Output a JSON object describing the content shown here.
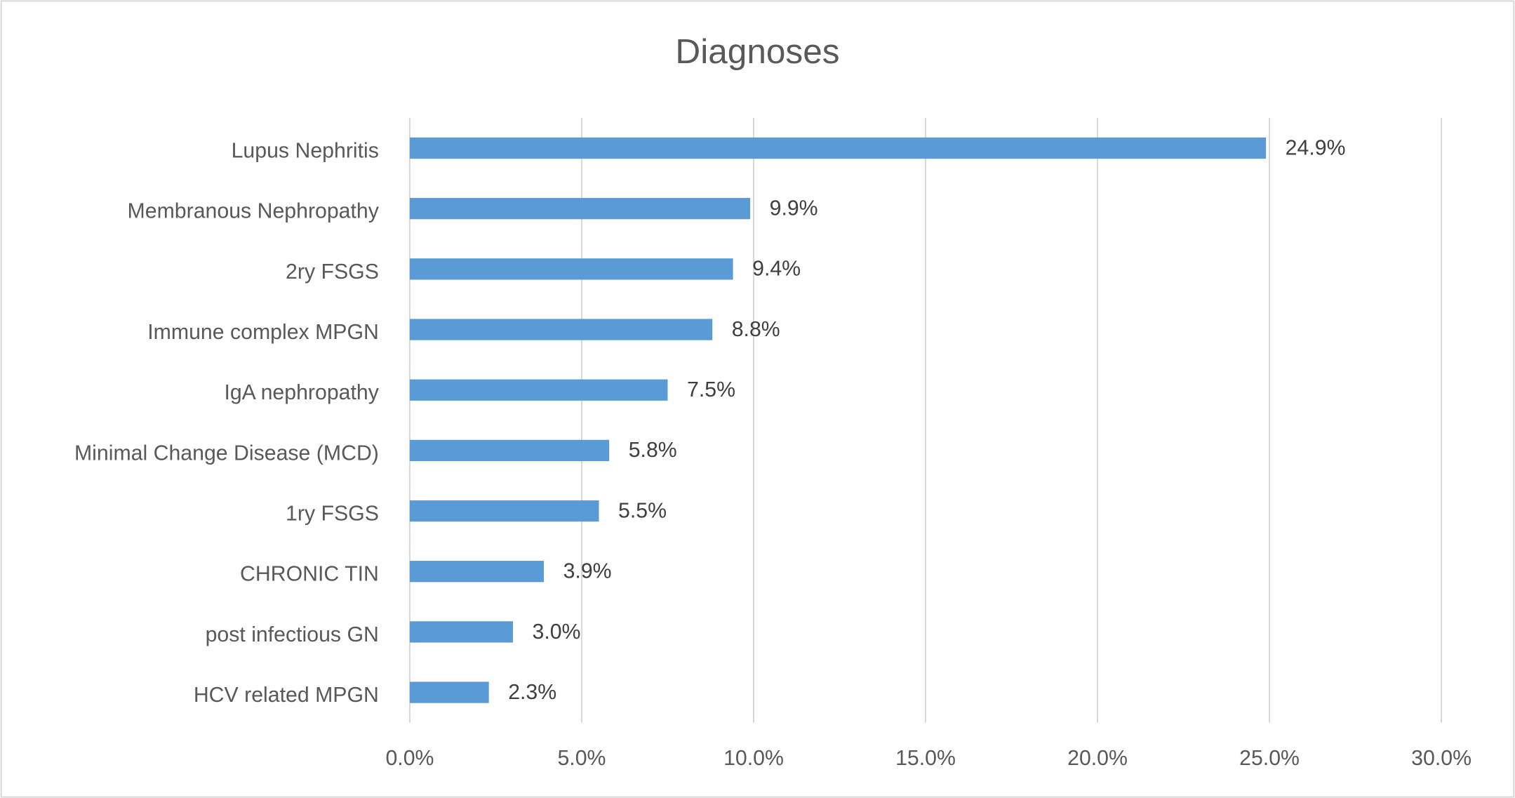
{
  "chart_data": {
    "type": "bar",
    "orientation": "horizontal",
    "title": "Diagnoses",
    "categories": [
      "Lupus Nephritis",
      "Membranous Nephropathy",
      "2ry FSGS",
      "Immune complex MPGN",
      "IgA nephropathy",
      "Minimal Change Disease (MCD)",
      "1ry FSGS",
      "CHRONIC TIN",
      "post infectious GN",
      "HCV related MPGN"
    ],
    "values": [
      24.9,
      9.9,
      9.4,
      8.8,
      7.5,
      5.8,
      5.5,
      3.9,
      3.0,
      2.3
    ],
    "value_labels": [
      "24.9%",
      "9.9%",
      "9.4%",
      "8.8%",
      "7.5%",
      "5.8%",
      "5.5%",
      "3.9%",
      "3.0%",
      "2.3%"
    ],
    "color": "#5b9bd5",
    "xlim": [
      0,
      30
    ],
    "xticks": [
      {
        "value": 0,
        "label": "0.0%"
      },
      {
        "value": 5,
        "label": "5.0%"
      },
      {
        "value": 10,
        "label": "10.0%"
      },
      {
        "value": 15,
        "label": "15.0%"
      },
      {
        "value": 20,
        "label": "20.0%"
      },
      {
        "value": 25,
        "label": "25.0%"
      },
      {
        "value": 30,
        "label": "30.0%"
      }
    ],
    "grid": true
  }
}
